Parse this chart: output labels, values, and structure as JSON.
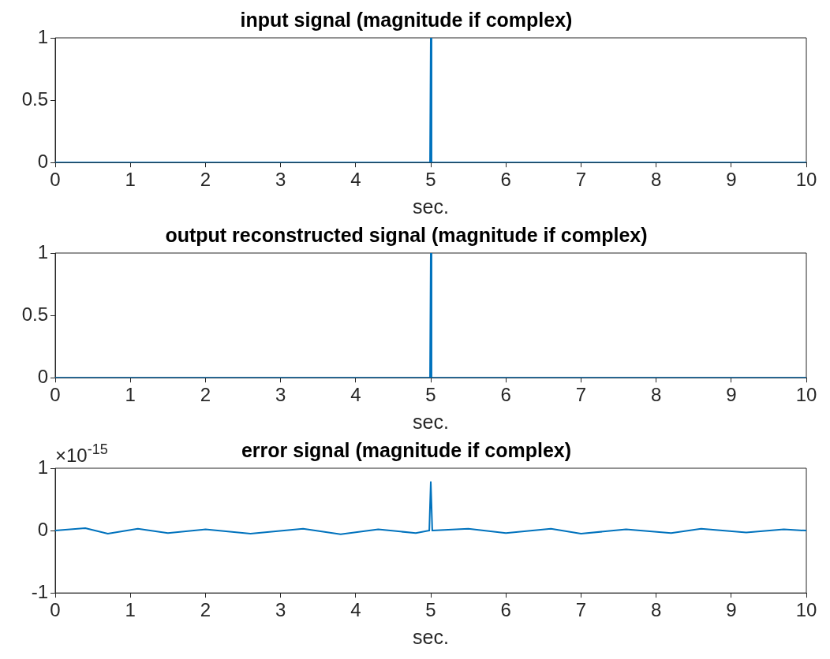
{
  "chart_data": [
    {
      "type": "line",
      "title": "input signal (magnitude if complex)",
      "xlabel": "sec.",
      "xlim": [
        0,
        10
      ],
      "xticks": [
        0,
        1,
        2,
        3,
        4,
        5,
        6,
        7,
        8,
        9,
        10
      ],
      "ylim": [
        0,
        1
      ],
      "yticks": [
        0,
        0.5,
        1
      ],
      "grid": false,
      "legend": false,
      "series": [
        {
          "color": "#0072bd",
          "x": [
            0,
            4.99,
            5,
            5.01,
            10
          ],
          "values": [
            0,
            0,
            1,
            0,
            0
          ]
        }
      ]
    },
    {
      "type": "line",
      "title": "output reconstructed signal (magnitude if complex)",
      "xlabel": "sec.",
      "xlim": [
        0,
        10
      ],
      "xticks": [
        0,
        1,
        2,
        3,
        4,
        5,
        6,
        7,
        8,
        9,
        10
      ],
      "ylim": [
        0,
        1
      ],
      "yticks": [
        0,
        0.5,
        1
      ],
      "grid": false,
      "legend": false,
      "series": [
        {
          "color": "#0072bd",
          "x": [
            0,
            4.99,
            5,
            5.01,
            10
          ],
          "values": [
            0,
            0,
            1,
            0,
            0
          ]
        }
      ]
    },
    {
      "type": "line",
      "title": "error signal (magnitude if complex)",
      "xlabel": "sec.",
      "annotations": [
        "×10$^{-15}$"
      ],
      "xlim": [
        0,
        10
      ],
      "xticks": [
        0,
        1,
        2,
        3,
        4,
        5,
        6,
        7,
        8,
        9,
        10
      ],
      "ylim": [
        -1,
        1
      ],
      "yticks": [
        -1,
        0,
        1
      ],
      "grid": false,
      "legend": false,
      "series": [
        {
          "color": "#0072bd",
          "x": [
            0,
            0.4,
            0.7,
            1.1,
            1.5,
            2.0,
            2.6,
            3.3,
            3.8,
            4.3,
            4.8,
            4.98,
            5,
            5.02,
            5.5,
            6.0,
            6.6,
            7.0,
            7.6,
            8.2,
            8.6,
            9.2,
            9.7,
            10
          ],
          "values": [
            0,
            0.04,
            -0.05,
            0.03,
            -0.04,
            0.02,
            -0.05,
            0.03,
            -0.06,
            0.02,
            -0.04,
            0,
            0.78,
            0,
            0.03,
            -0.04,
            0.03,
            -0.05,
            0.02,
            -0.04,
            0.03,
            -0.03,
            0.02,
            0
          ]
        }
      ]
    }
  ]
}
